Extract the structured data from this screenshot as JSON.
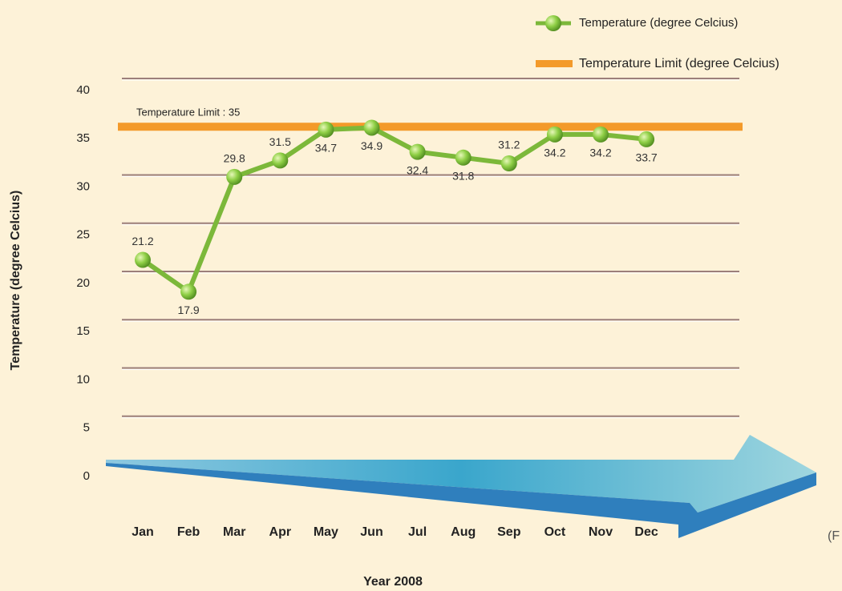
{
  "chart_data": {
    "type": "line",
    "x_label": "Year 2008",
    "y_label": "Temperature (degree Celcius)",
    "categories": [
      "Jan",
      "Feb",
      "Mar",
      "Apr",
      "May",
      "Jun",
      "Jul",
      "Aug",
      "Sep",
      "Oct",
      "Nov",
      "Dec"
    ],
    "series": [
      {
        "name": "Temperature (degree Celcius)",
        "color": "#7cb83a",
        "values": [
          21.2,
          17.9,
          29.8,
          31.5,
          34.7,
          34.9,
          32.4,
          31.8,
          31.2,
          34.2,
          34.2,
          33.7
        ]
      }
    ],
    "limit": {
      "name": "Temperature Limit (degree Celcius)",
      "color": "#f39a2a",
      "value": 35,
      "label": "Temperature Limit : 35"
    },
    "ylim": [
      0,
      40
    ],
    "yticks": [
      0,
      5,
      10,
      15,
      20,
      25,
      30,
      35,
      40
    ],
    "grid": true,
    "legend": "top-right",
    "fragment": "(F"
  }
}
